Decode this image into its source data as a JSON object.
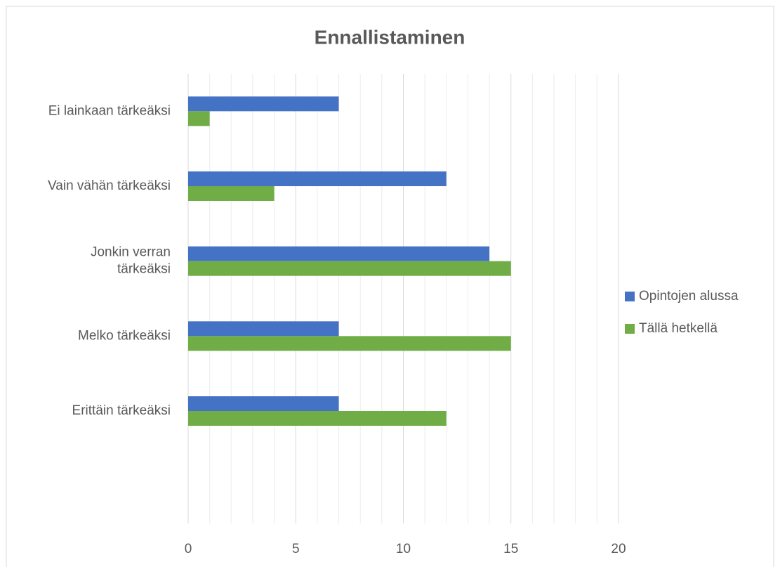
{
  "chart_data": {
    "type": "bar",
    "orientation": "horizontal",
    "title": "Ennallistaminen",
    "categories": [
      "Ei lainkaan tärkeäksi",
      "Vain vähän tärkeäksi",
      "Jonkin verran\ntärkeäksi",
      "Melko tärkeäksi",
      "Erittäin tärkeäksi",
      null
    ],
    "series": [
      {
        "name": "Opintojen alussa",
        "color": "#4472c4",
        "values": [
          7,
          12,
          14,
          7,
          7,
          null
        ]
      },
      {
        "name": "Tällä hetkellä",
        "color": "#70ad47",
        "values": [
          1,
          4,
          15,
          15,
          12,
          null
        ]
      }
    ],
    "xlim": [
      0,
      20
    ],
    "xticks": [
      0,
      5,
      10,
      15,
      20
    ],
    "xminorticks": [
      1,
      2,
      3,
      4,
      6,
      7,
      8,
      9,
      11,
      12,
      13,
      14,
      16,
      17,
      18,
      19
    ],
    "grid": true,
    "legend": "right"
  }
}
